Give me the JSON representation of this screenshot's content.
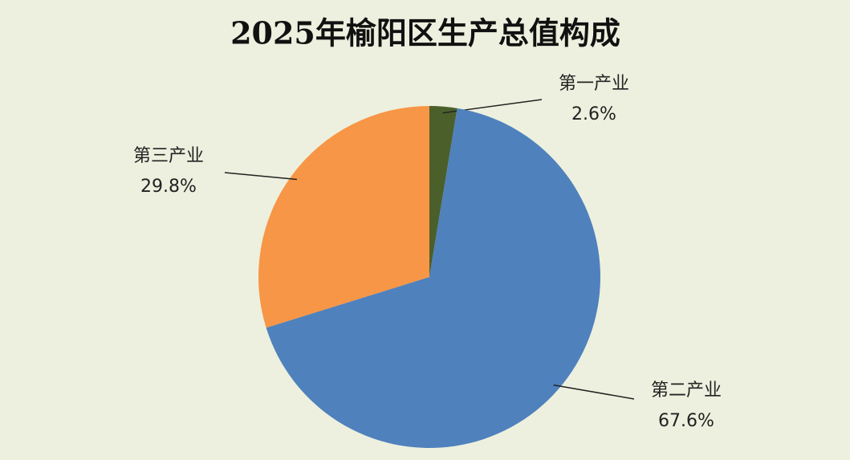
{
  "chart_data": {
    "type": "pie",
    "title": "2025年榆阳区生产总值构成",
    "categories": [
      "第一产业",
      "第二产业",
      "第三产业"
    ],
    "values": [
      2.6,
      67.6,
      29.8
    ],
    "value_labels": [
      "2.6%",
      "67.6%",
      "29.8%"
    ],
    "colors": [
      "#4b5f2b",
      "#4f81bd",
      "#f79646"
    ]
  }
}
